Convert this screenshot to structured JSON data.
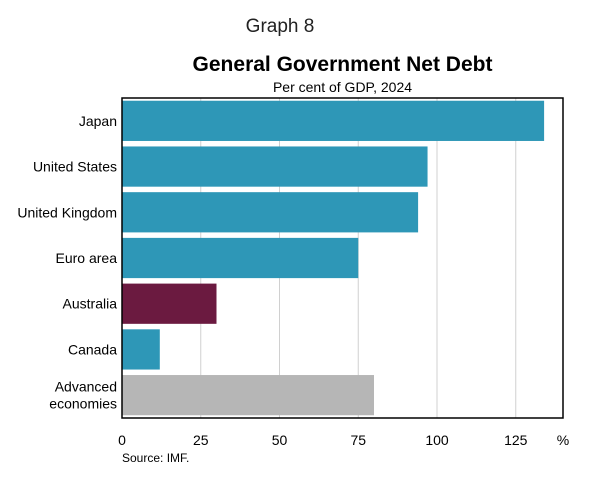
{
  "graph_label": "Graph 8",
  "source": "Source: IMF.",
  "chart_data": {
    "type": "bar",
    "orientation": "horizontal",
    "title": "General Government Net Debt",
    "subtitle": "Per cent of GDP, 2024",
    "x_unit": "%",
    "xlim": [
      0,
      140
    ],
    "xticks": [
      0,
      25,
      50,
      75,
      100,
      125
    ],
    "grid": true,
    "categories": [
      [
        "Japan"
      ],
      [
        "United States"
      ],
      [
        "United Kingdom"
      ],
      [
        "Euro area"
      ],
      [
        "Australia"
      ],
      [
        "Canada"
      ],
      [
        "Advanced",
        "economies"
      ]
    ],
    "values": [
      134,
      97,
      94,
      75,
      30,
      12,
      80
    ],
    "colors": [
      "#2e97b7",
      "#2e97b7",
      "#2e97b7",
      "#2e97b7",
      "#6b1a40",
      "#2e97b7",
      "#b6b6b6"
    ]
  }
}
